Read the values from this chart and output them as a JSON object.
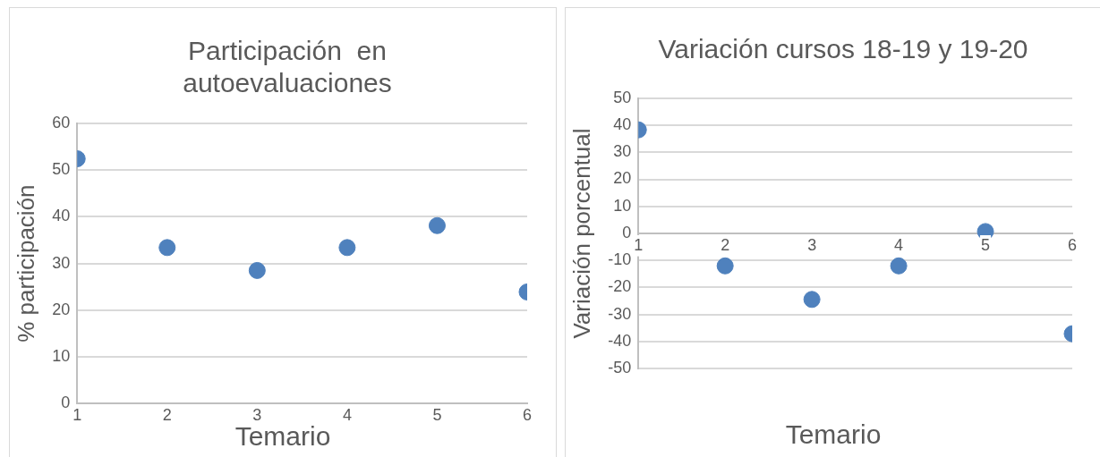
{
  "chart_data": [
    {
      "type": "scatter",
      "title": "Participación  en autoevaluaciones",
      "xlabel": "Temario",
      "ylabel": "% participación",
      "x": [
        1,
        2,
        3,
        4,
        5,
        6
      ],
      "series": [
        {
          "color": "#4f81bd",
          "values": [
            52.4,
            33.4,
            28.5,
            33.4,
            38.1,
            23.9
          ]
        }
      ],
      "xlim": [
        1,
        6
      ],
      "xticks": [
        1,
        2,
        3,
        4,
        5,
        6
      ],
      "ylim": [
        0,
        60
      ],
      "yticks": [
        0,
        10,
        20,
        30,
        40,
        50,
        60
      ],
      "grid": "y",
      "legend": false,
      "marker": "circle"
    },
    {
      "type": "scatter",
      "title": "Variación cursos 18-19 y 19-20",
      "xlabel": "Temario",
      "ylabel": "Variación porcentual",
      "x": [
        1,
        2,
        3,
        4,
        5,
        6
      ],
      "series": [
        {
          "color": "#4f81bd",
          "values": [
            38.3,
            -12.0,
            -24.4,
            -12.0,
            0.7,
            -37.1
          ]
        }
      ],
      "xlim": [
        1,
        6
      ],
      "xticks": [
        1,
        2,
        3,
        4,
        5,
        6
      ],
      "ylim": [
        -50,
        50
      ],
      "yticks": [
        -50,
        -40,
        -30,
        -20,
        -10,
        0,
        10,
        20,
        30,
        40,
        50
      ],
      "grid": "y",
      "legend": false,
      "marker": "circle"
    }
  ]
}
